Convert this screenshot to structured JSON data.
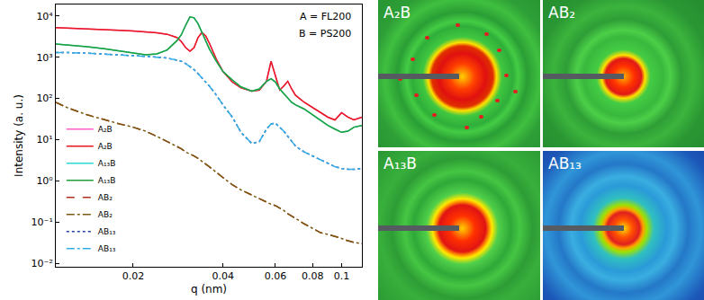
{
  "chart_data": {
    "type": "line",
    "x_label": "q (nm)",
    "y_label": "Intensity (a. u.)",
    "annotations": [
      "A = FL200",
      "B = PS200"
    ],
    "log": true,
    "grid": false,
    "legend": "bottom-left",
    "xlim": [
      0.011,
      0.117
    ],
    "ylim": [
      0.0082,
      19000
    ],
    "xticks": [
      0.02,
      0.04,
      0.06,
      0.08,
      0.1
    ],
    "yticks": [
      {
        "value": 0.01,
        "label": "10⁻²"
      },
      {
        "value": 0.1,
        "label": "10⁻¹"
      },
      {
        "value": 1,
        "label": "10⁰"
      },
      {
        "value": 10,
        "label": "10¹"
      },
      {
        "value": 100,
        "label": "10²"
      },
      {
        "value": 1000,
        "label": "10³"
      },
      {
        "value": 10000,
        "label": "10⁴"
      }
    ],
    "x": [
      0.011,
      0.012,
      0.014,
      0.016,
      0.018,
      0.02,
      0.022,
      0.024,
      0.026,
      0.028,
      0.029,
      0.03,
      0.031,
      0.032,
      0.033,
      0.034,
      0.035,
      0.036,
      0.038,
      0.04,
      0.043,
      0.046,
      0.05,
      0.053,
      0.056,
      0.058,
      0.06,
      0.062,
      0.064,
      0.066,
      0.068,
      0.07,
      0.075,
      0.08,
      0.085,
      0.09,
      0.095,
      0.1,
      0.105,
      0.11,
      0.117
    ],
    "series": [
      {
        "name": "A₂B",
        "color": "#ff5fc8",
        "line_style": "solid",
        "values": [
          5200,
          5100,
          4900,
          4700,
          4500,
          4300,
          4100,
          3900,
          3600,
          3000,
          2400,
          1700,
          1400,
          1700,
          3000,
          4000,
          3300,
          2200,
          900,
          450,
          250,
          180,
          150,
          160,
          260,
          800,
          350,
          160,
          200,
          260,
          170,
          120,
          80,
          60,
          45,
          35,
          30,
          45,
          35,
          30,
          35
        ]
      },
      {
        "name": "A₂B",
        "color": "#e8191e",
        "line_style": "solid",
        "values": [
          5200,
          5100,
          4900,
          4700,
          4500,
          4300,
          4100,
          3900,
          3600,
          3000,
          2400,
          1700,
          1400,
          1700,
          3000,
          4000,
          3300,
          2200,
          900,
          450,
          250,
          180,
          150,
          160,
          260,
          800,
          350,
          160,
          200,
          260,
          170,
          120,
          80,
          60,
          45,
          35,
          30,
          45,
          35,
          30,
          35
        ]
      },
      {
        "name": "A₁₃B",
        "color": "#2fd8d0",
        "line_style": "solid",
        "values": [
          2100,
          2000,
          1800,
          1600,
          1400,
          1250,
          1150,
          1200,
          1500,
          2500,
          3500,
          6000,
          9500,
          9000,
          6500,
          4000,
          2500,
          1600,
          800,
          450,
          280,
          190,
          150,
          170,
          260,
          300,
          250,
          170,
          130,
          100,
          80,
          70,
          55,
          40,
          30,
          22,
          18,
          15,
          16,
          20,
          22
        ]
      },
      {
        "name": "A₁₃B",
        "color": "#1f9e3a",
        "line_style": "solid",
        "values": [
          2100,
          2000,
          1800,
          1600,
          1400,
          1250,
          1150,
          1200,
          1500,
          2500,
          3500,
          6000,
          9500,
          9000,
          6500,
          4000,
          2500,
          1600,
          800,
          450,
          280,
          190,
          150,
          170,
          260,
          300,
          250,
          170,
          130,
          100,
          80,
          70,
          55,
          40,
          30,
          22,
          18,
          15,
          16,
          20,
          22
        ]
      },
      {
        "name": "AB₂",
        "color": "#b0301e",
        "line_style": "dash",
        "values": [
          80,
          60,
          40,
          30,
          24,
          20,
          16,
          12,
          9,
          7,
          6,
          5,
          4.5,
          4,
          3.5,
          3,
          2.6,
          2.2,
          1.6,
          1.2,
          0.8,
          0.6,
          0.45,
          0.37,
          0.3,
          0.27,
          0.25,
          0.22,
          0.19,
          0.16,
          0.14,
          0.12,
          0.09,
          0.07,
          0.055,
          0.05,
          0.045,
          0.04,
          0.035,
          0.032,
          0.03
        ]
      },
      {
        "name": "AB₂",
        "color": "#7a5a12",
        "line_style": "dashdot",
        "values": [
          80,
          60,
          40,
          30,
          24,
          20,
          16,
          12,
          9,
          7,
          6,
          5,
          4.5,
          4,
          3.5,
          3,
          2.6,
          2.2,
          1.6,
          1.2,
          0.8,
          0.6,
          0.45,
          0.37,
          0.3,
          0.27,
          0.25,
          0.22,
          0.19,
          0.16,
          0.14,
          0.12,
          0.09,
          0.07,
          0.055,
          0.05,
          0.045,
          0.04,
          0.035,
          0.032,
          0.03
        ]
      },
      {
        "name": "AB₁₃",
        "color": "#2040a0",
        "line_style": "dot",
        "values": [
          1300,
          1300,
          1250,
          1200,
          1150,
          1100,
          1050,
          1000,
          950,
          850,
          800,
          700,
          600,
          500,
          400,
          320,
          260,
          200,
          120,
          70,
          35,
          15,
          8,
          9,
          18,
          24,
          25,
          20,
          16,
          12,
          9,
          7,
          5,
          4,
          3.2,
          2.6,
          2.2,
          2,
          1.9,
          1.9,
          2
        ]
      },
      {
        "name": "AB₁₃",
        "color": "#33aee8",
        "line_style": "dashdot",
        "values": [
          1300,
          1300,
          1250,
          1200,
          1150,
          1100,
          1050,
          1000,
          950,
          850,
          800,
          700,
          600,
          500,
          400,
          320,
          260,
          200,
          120,
          70,
          35,
          15,
          8,
          9,
          18,
          24,
          25,
          20,
          16,
          12,
          9,
          7,
          5,
          4,
          3.2,
          2.6,
          2.2,
          2,
          1.9,
          1.9,
          2
        ]
      }
    ]
  },
  "panels": [
    {
      "label": "A₂B"
    },
    {
      "label": "AB₂"
    },
    {
      "label": "A₁₃B"
    },
    {
      "label": "AB₁₃"
    }
  ]
}
